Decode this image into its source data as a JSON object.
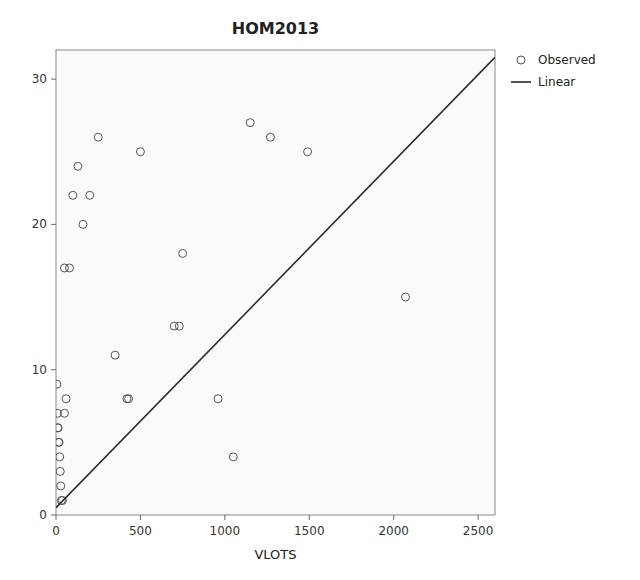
{
  "chart_data": {
    "type": "scatter",
    "title": "HOM2013",
    "xlabel": "VLOTS",
    "xlim": [
      0,
      2600
    ],
    "ylim": [
      0,
      32
    ],
    "xticks": [
      0,
      500,
      1000,
      1500,
      2000,
      2500
    ],
    "yticks": [
      0,
      10,
      20,
      30
    ],
    "legend": "right",
    "series": [
      {
        "name": "Observed",
        "type": "scatter",
        "marker": "circle",
        "color": "#555555",
        "x": [
          50,
          80,
          100,
          130,
          160,
          200,
          250,
          350,
          420,
          430,
          500,
          700,
          730,
          750,
          960,
          1050,
          1150,
          1270,
          1490,
          2070,
          5,
          8,
          10,
          12,
          15,
          18,
          22,
          25,
          28,
          32,
          38,
          50,
          60
        ],
        "values": [
          17,
          17,
          22,
          24,
          20,
          22,
          26,
          11,
          8,
          8,
          25,
          13,
          13,
          18,
          8,
          4,
          27,
          26,
          25,
          15,
          9,
          7,
          6,
          6,
          5,
          5,
          4,
          3,
          2,
          1,
          1,
          7,
          8
        ]
      },
      {
        "name": "Linear",
        "type": "line",
        "color": "#2a2a2a",
        "x": [
          0,
          2600
        ],
        "values": [
          0.5,
          31.492
        ]
      }
    ]
  }
}
